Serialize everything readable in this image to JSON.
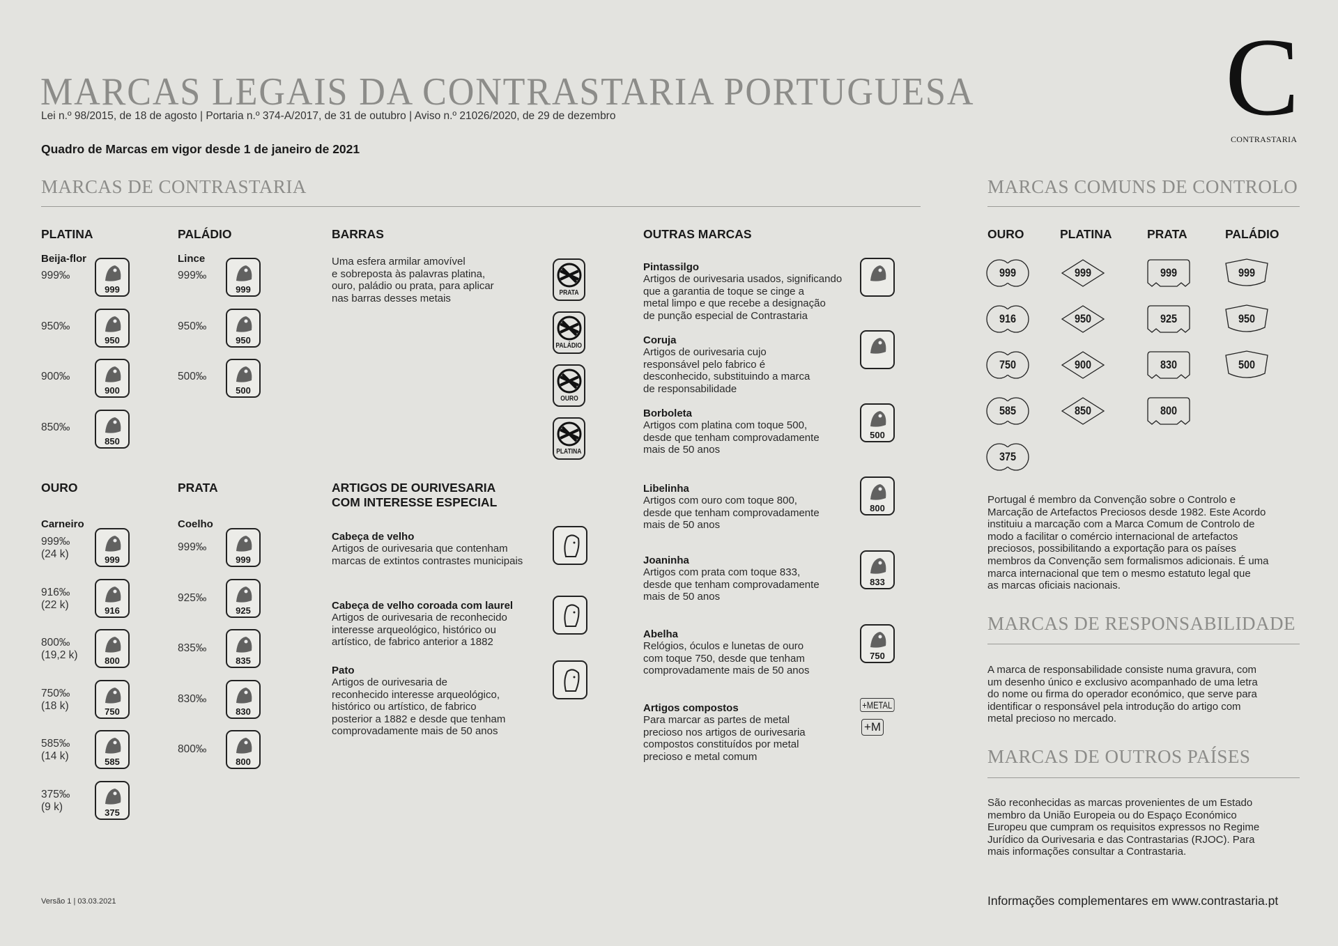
{
  "header": {
    "title": "Marcas Legais da Contrastaria Portuguesa",
    "subtitle": "Lei n.º 98/2015, de 18 de agosto | Portaria n.º 374-A/2017, de 31 de outubro | Aviso n.º 21026/2020, de 29 de dezembro",
    "quadro": "Quadro de Marcas em vigor desde 1 de janeiro de 2021",
    "logo_letter": "C",
    "logo_text": "CONTRASTARIA"
  },
  "contrastaria": {
    "title": "Marcas de Contrastaria",
    "platina": {
      "heading": "PLATINA",
      "animal": "Beija-flor",
      "icon": "hummingbird-icon",
      "rows": [
        {
          "pct": "999‰",
          "num": "999"
        },
        {
          "pct": "950‰",
          "num": "950"
        },
        {
          "pct": "900‰",
          "num": "900"
        },
        {
          "pct": "850‰",
          "num": "850"
        }
      ]
    },
    "paladio": {
      "heading": "PALÁDIO",
      "animal": "Lince",
      "icon": "lynx-icon",
      "rows": [
        {
          "pct": "999‰",
          "num": "999"
        },
        {
          "pct": "950‰",
          "num": "950"
        },
        {
          "pct": "500‰",
          "num": "500"
        }
      ]
    },
    "ouro": {
      "heading": "OURO",
      "animal": "Carneiro",
      "icon": "ram-icon",
      "rows": [
        {
          "pct": "999‰\n(24 k)",
          "num": "999"
        },
        {
          "pct": "916‰\n(22 k)",
          "num": "916"
        },
        {
          "pct": "800‰\n(19,2 k)",
          "num": "800"
        },
        {
          "pct": "750‰\n(18 k)",
          "num": "750"
        },
        {
          "pct": "585‰\n(14 k)",
          "num": "585"
        },
        {
          "pct": "375‰\n(9 k)",
          "num": "375"
        }
      ]
    },
    "prata": {
      "heading": "PRATA",
      "animal": "Coelho",
      "icon": "rabbit-icon",
      "rows": [
        {
          "pct": "999‰",
          "num": "999"
        },
        {
          "pct": "925‰",
          "num": "925"
        },
        {
          "pct": "835‰",
          "num": "835"
        },
        {
          "pct": "830‰",
          "num": "830"
        },
        {
          "pct": "800‰",
          "num": "800"
        }
      ]
    },
    "barras": {
      "heading": "BARRAS",
      "text": "Uma esfera armilar amovível\ne sobreposta às palavras platina,\nouro, paládio ou prata, para aplicar\nnas barras desses metais",
      "marks": [
        "PRATA",
        "PALÁDIO",
        "OURO",
        "PLATINA"
      ]
    },
    "especial": {
      "heading": "ARTIGOS DE OURIVESARIA\nCOM INTERESSE ESPECIAL",
      "items": [
        {
          "title": "Cabeça de velho",
          "text": "Artigos de ourivesaria que contenham\nmarcas de extintos contrastes municipais",
          "icon": "old-man-head-icon"
        },
        {
          "title": "Cabeça de velho coroada com laurel",
          "text": "Artigos de ourivesaria de reconhecido\ninteresse arqueológico, histórico ou\nartístico, de fabrico anterior a 1882",
          "icon": "laurel-crowned-head-icon"
        },
        {
          "title": "Pato",
          "text": "Artigos de ourivesaria de\nreconhecido interesse arqueológico,\nhistórico ou artístico, de fabrico\nposterior a 1882 e desde que tenham\ncomprovadamente mais de 50 anos",
          "icon": "duck-icon"
        }
      ]
    },
    "outras": {
      "heading": "OUTRAS MARCAS",
      "items": [
        {
          "title": "Pintassilgo",
          "text": "Artigos de ourivesaria usados, significando\nque a garantia de toque se cinge a\nmetal limpo e que recebe a designação\nde punção especial de Contrastaria",
          "icon": "goldfinch-icon",
          "num": ""
        },
        {
          "title": "Coruja",
          "text": "Artigos de ourivesaria cujo\nresponsável pelo fabrico é\ndesconhecido, substituindo a marca\nde responsabilidade",
          "icon": "owl-icon",
          "num": ""
        },
        {
          "title": "Borboleta",
          "text": "Artigos com platina com toque 500,\ndesde que tenham comprovadamente\nmais de 50 anos",
          "icon": "butterfly-icon",
          "num": "500"
        },
        {
          "title": "Libelinha",
          "text": "Artigos com ouro com toque 800,\ndesde que tenham comprovadamente\nmais de 50 anos",
          "icon": "dragonfly-icon",
          "num": "800"
        },
        {
          "title": "Joaninha",
          "text": "Artigos com prata com toque 833,\ndesde que tenham comprovadamente\nmais de 50 anos",
          "icon": "ladybug-icon",
          "num": "833"
        },
        {
          "title": "Abelha",
          "text": "Relógios, óculos e lunetas de ouro\ncom toque 750, desde que tenham\ncomprovadamente mais de 50 anos",
          "icon": "bee-icon",
          "num": "750"
        },
        {
          "title": "Artigos compostos",
          "text": "Para marcar as partes de metal\nprecioso nos artigos de ourivesaria\ncompostos constituídos por metal\nprecioso e metal comum",
          "icon": "",
          "num": ""
        }
      ],
      "compostos_marks": [
        "+METAL",
        "+M"
      ]
    }
  },
  "comuns": {
    "title": "Marcas Comuns de Controlo",
    "columns": [
      {
        "heading": "OURO",
        "shape": "double-circle",
        "values": [
          "999",
          "916",
          "750",
          "585",
          "375"
        ]
      },
      {
        "heading": "PLATINA",
        "shape": "diamond",
        "values": [
          "999",
          "950",
          "900",
          "850"
        ]
      },
      {
        "heading": "PRATA",
        "shape": "notched-rect",
        "values": [
          "999",
          "925",
          "830",
          "800"
        ]
      },
      {
        "heading": "PALÁDIO",
        "shape": "trapezoid",
        "values": [
          "999",
          "950",
          "500"
        ]
      }
    ],
    "text": "Portugal é membro da Convenção sobre o Controlo e\nMarcação de Artefactos Preciosos desde 1982. Este Acordo\ninstituiu a marcação com a Marca Comum de Controlo de\nmodo a facilitar o comércio internacional de artefactos\npreciosos, possibilitando a exportação para os países\nmembros da Convenção sem formalismos adicionais. É uma\nmarca internacional que tem o mesmo estatuto legal que\nas marcas oficiais nacionais."
  },
  "responsabilidade": {
    "title": "Marcas de Responsabilidade",
    "text": "A marca de responsabilidade consiste numa gravura, com\num desenho único e exclusivo acompanhado de uma letra\ndo nome ou firma do operador económico, que serve para\nidentificar o responsável pela introdução do artigo com\nmetal precioso no mercado."
  },
  "outros_paises": {
    "title": "Marcas de Outros Países",
    "text": "São reconhecidas as marcas provenientes de um Estado\nmembro da União Europeia ou do Espaço Económico\nEuropeu que cumpram os requisitos expressos no Regime\nJurídico da Ourivesaria e das Contrastarias (RJOC). Para\nmais informações consultar a Contrastaria."
  },
  "footer": {
    "version": "Versão 1 | 03.03.2021",
    "info": "Informações complementares em www.contrastaria.pt"
  }
}
